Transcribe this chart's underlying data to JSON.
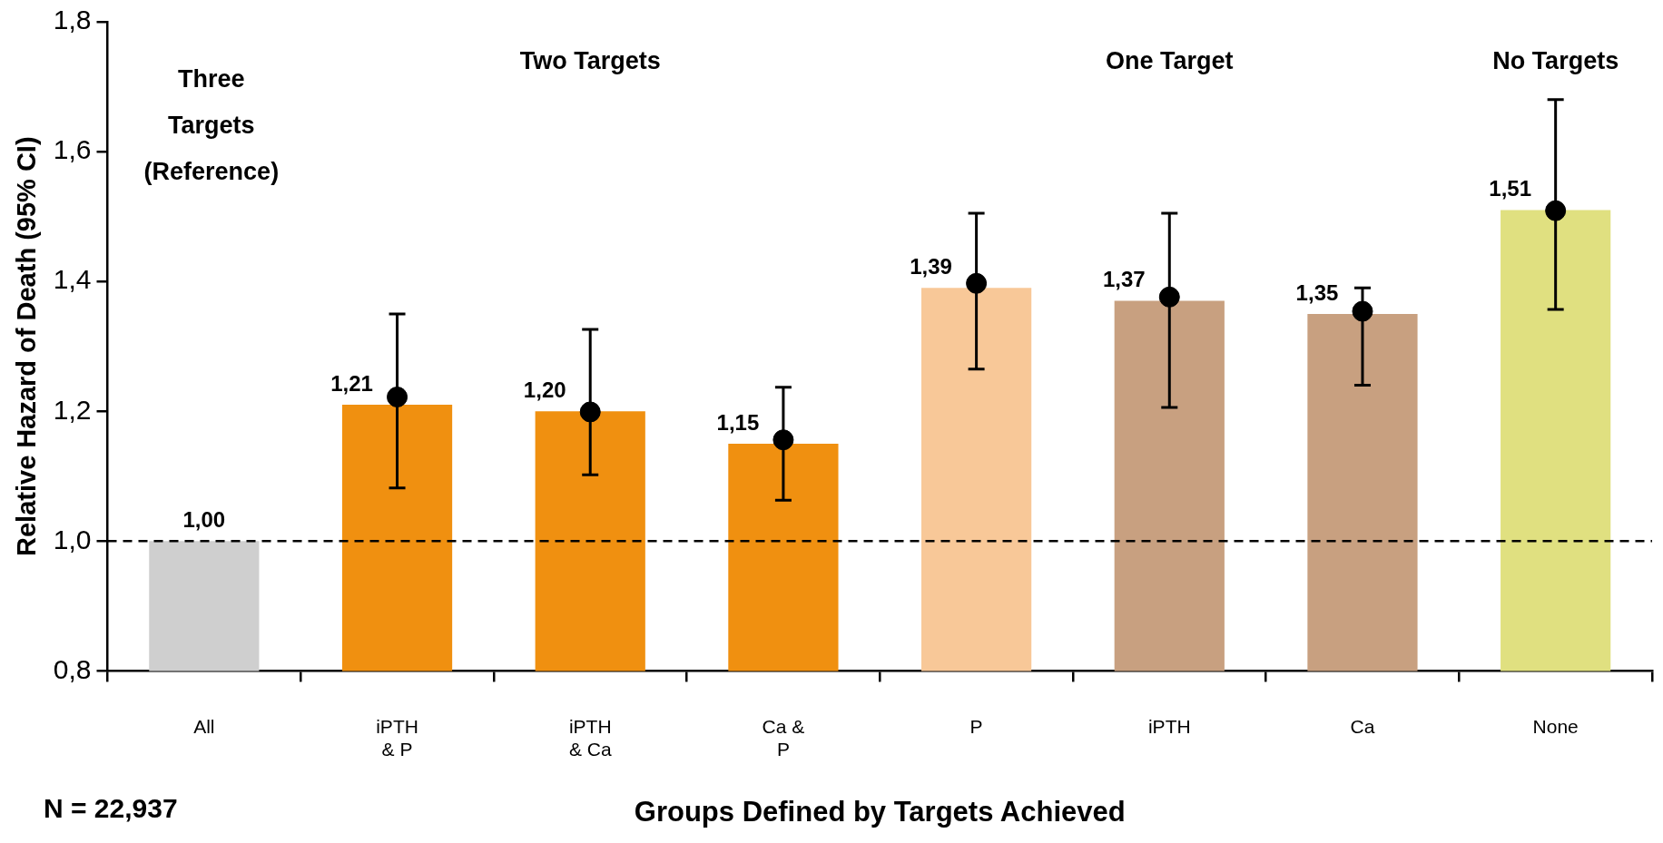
{
  "chart_data": {
    "type": "bar",
    "xlabel": "Groups Defined by Targets Achieved",
    "ylabel": "Relative Hazard of Death (95% CI)",
    "categories": [
      "All",
      "iPTH\n& P",
      "iPTH\n& Ca",
      "Ca &\nP",
      "P",
      "iPTH",
      "Ca",
      "None"
    ],
    "series": [
      {
        "values": [
          1.0,
          1.21,
          1.2,
          1.15,
          1.39,
          1.37,
          1.35,
          1.51
        ],
        "colors": [
          "#cfcfcf",
          "#f09010",
          "#f09010",
          "#f09010",
          "#f8c898",
          "#c8a080",
          "#c8a080",
          "#e0e080"
        ],
        "value_labels": [
          "1,00",
          "1,21",
          "1,20",
          "1,15",
          "1,39",
          "1,37",
          "1,35",
          "1,51"
        ]
      },
      {
        "type": "scatter",
        "color": "#000000",
        "marker": "circle",
        "values": [
          null,
          1.222,
          1.199,
          1.156,
          1.397,
          1.376,
          1.354,
          1.509
        ],
        "errors": [
          null,
          [
            1.082,
            1.35
          ],
          [
            1.102,
            1.326
          ],
          [
            1.063,
            1.237
          ],
          [
            1.265,
            1.505
          ],
          [
            1.206,
            1.505
          ],
          [
            1.24,
            1.39
          ],
          [
            1.357,
            1.68
          ]
        ]
      }
    ],
    "ylim": [
      0.8,
      1.8
    ],
    "yticks": [
      {
        "value": 0.8,
        "label": "0,8"
      },
      {
        "value": 1.0,
        "label": "1,0"
      },
      {
        "value": 1.2,
        "label": "1,2"
      },
      {
        "value": 1.4,
        "label": "1,4"
      },
      {
        "value": 1.6,
        "label": "1,6"
      },
      {
        "value": 1.8,
        "label": "1,8"
      }
    ],
    "ref_lines": [
      {
        "axis": "y",
        "value": 1.0,
        "color": "#000000",
        "line_style": "dashed"
      }
    ],
    "annotations": [
      "Three\nTargets\n(Reference)",
      "Two Targets",
      "One Target",
      "No Targets",
      "N = 22,937"
    ],
    "grid": false,
    "legend": false
  }
}
